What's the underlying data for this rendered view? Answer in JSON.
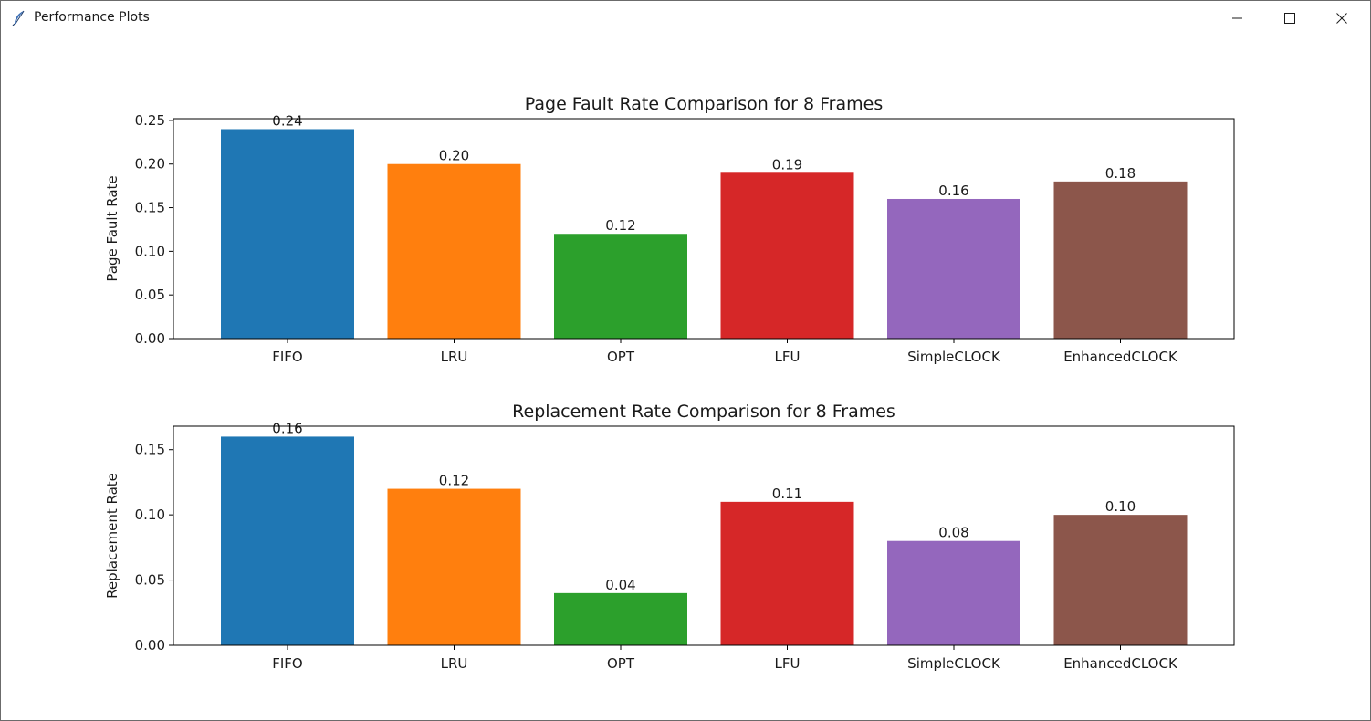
{
  "window": {
    "title": "Performance Plots",
    "icon": "feather-icon",
    "controls": [
      "minimize-icon",
      "maximize-icon",
      "close-icon"
    ]
  },
  "chart_data": [
    {
      "type": "bar",
      "title": "Page Fault Rate Comparison for 8 Frames",
      "xlabel": "",
      "ylabel": "Page Fault Rate",
      "categories": [
        "FIFO",
        "LRU",
        "OPT",
        "LFU",
        "SimpleCLOCK",
        "EnhancedCLOCK"
      ],
      "values": [
        0.24,
        0.2,
        0.12,
        0.19,
        0.16,
        0.18
      ],
      "data_labels": [
        "0.24",
        "0.20",
        "0.12",
        "0.19",
        "0.16",
        "0.18"
      ],
      "colors": [
        "#1f77b4",
        "#ff7f0e",
        "#2ca02c",
        "#d62728",
        "#9467bd",
        "#8c564b"
      ],
      "yticks": [
        0,
        0.05,
        0.1,
        0.15,
        0.2,
        0.25
      ],
      "ytick_labels": [
        "0.00",
        "0.05",
        "0.10",
        "0.15",
        "0.20",
        "0.25"
      ],
      "ylim": [
        0,
        0.252
      ],
      "grid": false
    },
    {
      "type": "bar",
      "title": "Replacement Rate Comparison for 8 Frames",
      "xlabel": "",
      "ylabel": "Replacement Rate",
      "categories": [
        "FIFO",
        "LRU",
        "OPT",
        "LFU",
        "SimpleCLOCK",
        "EnhancedCLOCK"
      ],
      "values": [
        0.16,
        0.12,
        0.04,
        0.11,
        0.08,
        0.1
      ],
      "data_labels": [
        "0.16",
        "0.12",
        "0.04",
        "0.11",
        "0.08",
        "0.10"
      ],
      "colors": [
        "#1f77b4",
        "#ff7f0e",
        "#2ca02c",
        "#d62728",
        "#9467bd",
        "#8c564b"
      ],
      "yticks": [
        0,
        0.05,
        0.1,
        0.15
      ],
      "ytick_labels": [
        "0.00",
        "0.05",
        "0.10",
        "0.15"
      ],
      "ylim": [
        0,
        0.168
      ],
      "grid": false
    }
  ]
}
